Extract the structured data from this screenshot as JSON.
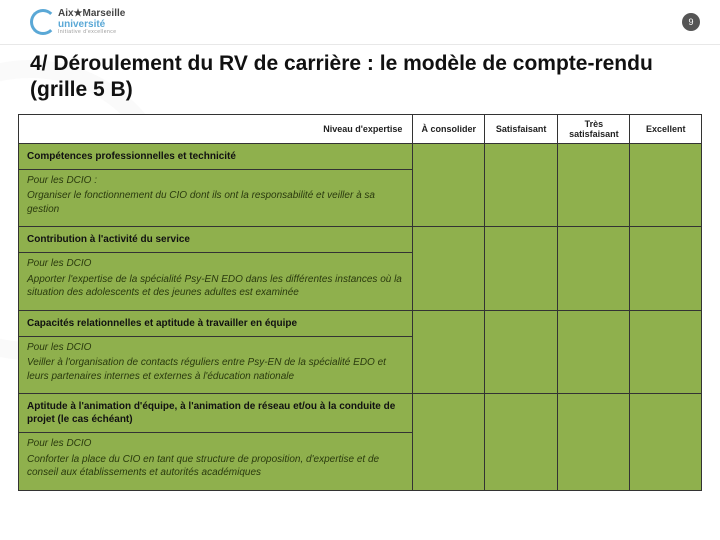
{
  "meta": {
    "page_number": "9",
    "logo": {
      "line1": "Aix★Marseille",
      "line2": "université",
      "line3": "Initiative d'excellence"
    }
  },
  "title": "4/ Déroulement du RV de carrière : le modèle de compte-rendu (grille 5 B)",
  "table": {
    "header": {
      "col0": "Niveau d'expertise",
      "ratings": [
        "À consolider",
        "Satisfaisant",
        "Très satisfaisant",
        "Excellent"
      ]
    },
    "sections": [
      {
        "heading": "Compétences professionnelles et technicité",
        "lead": "Pour les DCIO :",
        "body": "Organiser le fonctionnement du CIO dont ils ont la responsabilité et veiller à sa gestion"
      },
      {
        "heading": "Contribution à l'activité du service",
        "lead": "Pour les DCIO",
        "body": "Apporter l'expertise de la spécialité Psy-EN EDO dans les différentes instances où la situation des adolescents et des jeunes adultes est examinée"
      },
      {
        "heading": "Capacités relationnelles et aptitude à travailler en équipe",
        "lead": "Pour les DCIO",
        "body": "Veiller à l'organisation de contacts réguliers entre Psy-EN de la spécialité EDO et leurs partenaires internes et externes à l'éducation nationale"
      },
      {
        "heading": "Aptitude à l'animation d'équipe, à l'animation de réseau et/ou à la conduite de projet (le cas échéant)",
        "lead": "Pour les DCIO",
        "body": "Conforter la place du CIO en tant que structure de proposition, d'expertise et de conseil aux établissements et autorités académiques"
      }
    ]
  },
  "styles": {
    "table_bg": "#8fb04d",
    "border_color": "#333333",
    "header_bg": "#ffffff",
    "desc_text_color": "#2a3a0e"
  }
}
